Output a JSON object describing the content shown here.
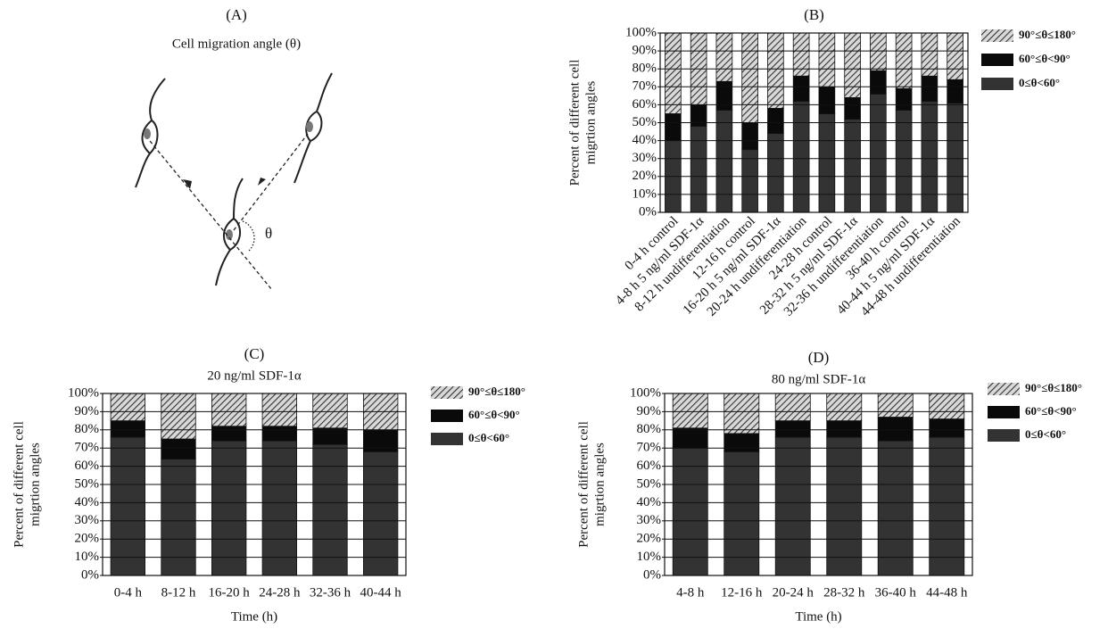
{
  "diagram": {
    "label": "(A)",
    "title": "Cell migration angle (θ)",
    "angle_label": "θ"
  },
  "chart_data": [
    {
      "type": "stacked_bar",
      "title": "(B)",
      "ylabel": [
        "Percent of different cell",
        "migrtion angles"
      ],
      "xtick_rotation": 45,
      "grid": true,
      "categories": [
        "0-4 h control",
        "4-8 h 5 ng/ml SDF-1α",
        "8-12 h undifferentiation",
        "12-16 h control",
        "16-20 h 5 ng/ml SDF-1α",
        "20-24 h undifferentiation",
        "24-28 h control",
        "28-32 h 5 ng/ml SDF-1α",
        "32-36 h undifferentiation",
        "36-40 h control",
        "40-44 h 5 ng/ml SDF-1α",
        "44-48 h undifferentiation"
      ],
      "series": [
        {
          "name": "0≤θ<60°",
          "color": "#333333",
          "values": [
            40,
            48,
            57,
            35,
            44,
            62,
            55,
            52,
            66,
            57,
            62,
            61
          ]
        },
        {
          "name": "60°≤θ<90°",
          "color": "#0a0a0a",
          "values": [
            15,
            12,
            16,
            15,
            14,
            14,
            15,
            12,
            13,
            12,
            14,
            13
          ]
        },
        {
          "name": "90°≤θ≤180°",
          "color": "#8a8a8a",
          "hatch": true,
          "values": [
            45,
            40,
            27,
            50,
            42,
            24,
            30,
            36,
            21,
            31,
            24,
            26
          ]
        }
      ],
      "ylim": [
        0,
        100
      ],
      "yticks": [
        {
          "value": 0,
          "label": "0%"
        },
        {
          "value": 10,
          "label": "10%"
        },
        {
          "value": 20,
          "label": "20%"
        },
        {
          "value": 30,
          "label": "30%"
        },
        {
          "value": 40,
          "label": "40%"
        },
        {
          "value": 50,
          "label": "50%"
        },
        {
          "value": 60,
          "label": "60%"
        },
        {
          "value": 70,
          "label": "70%"
        },
        {
          "value": 80,
          "label": "80%"
        },
        {
          "value": 90,
          "label": "90%"
        },
        {
          "value": 100,
          "label": "100%"
        }
      ]
    },
    {
      "type": "stacked_bar",
      "title": "(C)",
      "subtitle": "20 ng/ml SDF-1α",
      "ylabel": [
        "Percent of different cell",
        "migrtion angles"
      ],
      "xlabel": "Time (h)",
      "grid": true,
      "categories": [
        "0-4 h",
        "8-12 h",
        "16-20 h",
        "24-28 h",
        "32-36 h",
        "40-44 h"
      ],
      "series": [
        {
          "name": "0≤θ<60°",
          "color": "#333333",
          "values": [
            76,
            64,
            74,
            74,
            72,
            68
          ]
        },
        {
          "name": "60°≤θ<90°",
          "color": "#0a0a0a",
          "values": [
            9,
            11,
            8,
            8,
            9,
            12
          ]
        },
        {
          "name": "90°≤θ≤180°",
          "color": "#8a8a8a",
          "hatch": true,
          "values": [
            15,
            25,
            18,
            18,
            19,
            20
          ]
        }
      ],
      "ylim": [
        0,
        100
      ],
      "yticks": [
        {
          "value": 0,
          "label": "0%"
        },
        {
          "value": 10,
          "label": "10%"
        },
        {
          "value": 20,
          "label": "20%"
        },
        {
          "value": 30,
          "label": "30%"
        },
        {
          "value": 40,
          "label": "40%"
        },
        {
          "value": 50,
          "label": "50%"
        },
        {
          "value": 60,
          "label": "60%"
        },
        {
          "value": 70,
          "label": "70%"
        },
        {
          "value": 80,
          "label": "80%"
        },
        {
          "value": 90,
          "label": "90%"
        },
        {
          "value": 100,
          "label": "100%"
        }
      ]
    },
    {
      "type": "stacked_bar",
      "title": "(D)",
      "subtitle": "80 ng/ml SDF-1α",
      "ylabel": [
        "Percent of different cell",
        "migrtion angles"
      ],
      "xlabel": "Time (h)",
      "grid": true,
      "categories": [
        "4-8 h",
        "12-16 h",
        "20-24 h",
        "28-32 h",
        "36-40 h",
        "44-48 h"
      ],
      "series": [
        {
          "name": "0≤θ<60°",
          "color": "#333333",
          "values": [
            70,
            68,
            76,
            76,
            74,
            76
          ]
        },
        {
          "name": "60°≤θ<90°",
          "color": "#0a0a0a",
          "values": [
            11,
            10,
            9,
            9,
            13,
            10
          ]
        },
        {
          "name": "90°≤θ≤180°",
          "color": "#8a8a8a",
          "hatch": true,
          "values": [
            19,
            22,
            15,
            15,
            13,
            14
          ]
        }
      ],
      "ylim": [
        0,
        100
      ],
      "yticks": [
        {
          "value": 0,
          "label": "0%"
        },
        {
          "value": 10,
          "label": "10%"
        },
        {
          "value": 20,
          "label": "20%"
        },
        {
          "value": 30,
          "label": "30%"
        },
        {
          "value": 40,
          "label": "40%"
        },
        {
          "value": 50,
          "label": "50%"
        },
        {
          "value": 60,
          "label": "60%"
        },
        {
          "value": 70,
          "label": "70%"
        },
        {
          "value": 80,
          "label": "80%"
        },
        {
          "value": 90,
          "label": "90%"
        },
        {
          "value": 100,
          "label": "100%"
        }
      ]
    }
  ]
}
